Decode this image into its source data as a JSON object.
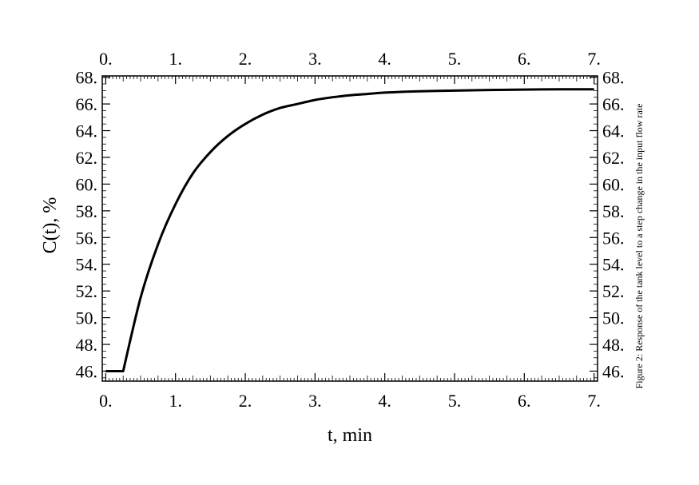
{
  "chart_data": {
    "type": "line",
    "xlabel": "t, min",
    "ylabel": "C(t), %",
    "caption": "Figure 2: Response of the tank level to a step change in the input flow rate",
    "xlim": [
      -0.05,
      7.05
    ],
    "ylim": [
      45.25,
      68.1
    ],
    "x_ticks": [
      0,
      1,
      2,
      3,
      4,
      5,
      6,
      7
    ],
    "x_tick_labels": [
      "0.",
      "1.",
      "2.",
      "3.",
      "4.",
      "5.",
      "6.",
      "7."
    ],
    "y_ticks": [
      46,
      48,
      50,
      52,
      54,
      56,
      58,
      60,
      62,
      64,
      66,
      68
    ],
    "y_tick_labels": [
      "46.",
      "48.",
      "50.",
      "52.",
      "54.",
      "56.",
      "58.",
      "60.",
      "62.",
      "64.",
      "66.",
      "68."
    ],
    "grid": false,
    "line_color": "#000000",
    "series": [
      {
        "values_x": [
          0.0,
          0.25,
          0.5,
          0.75,
          1.0,
          1.25,
          1.5,
          1.75,
          2.0,
          2.25,
          2.5,
          2.75,
          3.0,
          3.25,
          3.5,
          3.75,
          4.0,
          4.5,
          5.0,
          5.5,
          6.0,
          6.5,
          7.0
        ],
        "values_y": [
          46.0,
          46.0,
          51.5,
          55.5,
          58.5,
          60.8,
          62.4,
          63.6,
          64.5,
          65.2,
          65.7,
          66.0,
          66.3,
          66.5,
          66.65,
          66.75,
          66.85,
          66.95,
          67.0,
          67.05,
          67.08,
          67.1,
          67.1
        ]
      }
    ]
  }
}
